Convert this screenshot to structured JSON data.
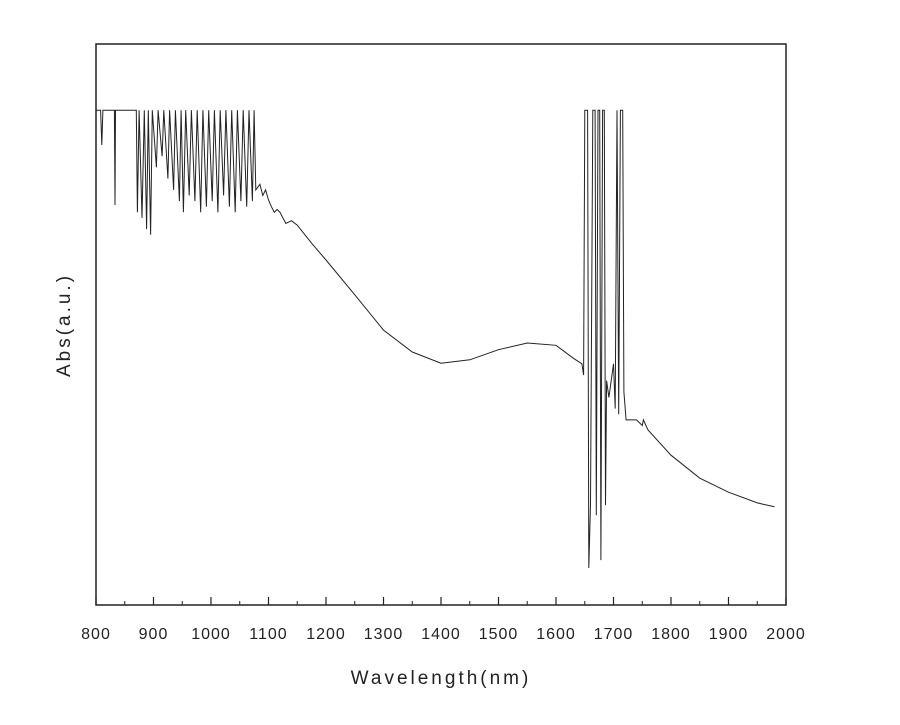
{
  "chart_data": {
    "type": "line",
    "title": "",
    "xlabel": "Wavelength(nm)",
    "ylabel": "Abs(a.u.)",
    "xlim": [
      800,
      2000
    ],
    "ylim": [
      0,
      1
    ],
    "xticks": [
      800,
      900,
      1000,
      1100,
      1200,
      1300,
      1400,
      1500,
      1600,
      1700,
      1800,
      1900,
      2000
    ],
    "grid": false,
    "legend": "none",
    "line_color": "#222222",
    "series": [
      {
        "name": "Abs",
        "points": [
          [
            800,
            0.882
          ],
          [
            808,
            0.882
          ],
          [
            810,
            0.82
          ],
          [
            812,
            0.882
          ],
          [
            832,
            0.882
          ],
          [
            833,
            0.713
          ],
          [
            834,
            0.882
          ],
          [
            870,
            0.882
          ],
          [
            872,
            0.7
          ],
          [
            875,
            0.882
          ],
          [
            880,
            0.69
          ],
          [
            884,
            0.882
          ],
          [
            888,
            0.67
          ],
          [
            891,
            0.882
          ],
          [
            895,
            0.66
          ],
          [
            898,
            0.882
          ],
          [
            905,
            0.78
          ],
          [
            908,
            0.882
          ],
          [
            915,
            0.8
          ],
          [
            918,
            0.882
          ],
          [
            925,
            0.76
          ],
          [
            928,
            0.882
          ],
          [
            935,
            0.74
          ],
          [
            938,
            0.882
          ],
          [
            945,
            0.72
          ],
          [
            948,
            0.882
          ],
          [
            952,
            0.7
          ],
          [
            956,
            0.882
          ],
          [
            962,
            0.73
          ],
          [
            966,
            0.882
          ],
          [
            972,
            0.72
          ],
          [
            976,
            0.882
          ],
          [
            982,
            0.7
          ],
          [
            986,
            0.882
          ],
          [
            992,
            0.71
          ],
          [
            996,
            0.882
          ],
          [
            1002,
            0.72
          ],
          [
            1006,
            0.882
          ],
          [
            1012,
            0.7
          ],
          [
            1016,
            0.882
          ],
          [
            1022,
            0.73
          ],
          [
            1026,
            0.882
          ],
          [
            1032,
            0.71
          ],
          [
            1036,
            0.882
          ],
          [
            1042,
            0.7
          ],
          [
            1046,
            0.882
          ],
          [
            1052,
            0.72
          ],
          [
            1056,
            0.882
          ],
          [
            1062,
            0.71
          ],
          [
            1066,
            0.882
          ],
          [
            1072,
            0.72
          ],
          [
            1075,
            0.882
          ],
          [
            1078,
            0.74
          ],
          [
            1085,
            0.75
          ],
          [
            1090,
            0.73
          ],
          [
            1095,
            0.74
          ],
          [
            1100,
            0.722
          ],
          [
            1105,
            0.71
          ],
          [
            1110,
            0.7
          ],
          [
            1115,
            0.705
          ],
          [
            1120,
            0.7
          ],
          [
            1130,
            0.68
          ],
          [
            1140,
            0.685
          ],
          [
            1150,
            0.677
          ],
          [
            1175,
            0.645
          ],
          [
            1200,
            0.615
          ],
          [
            1250,
            0.553
          ],
          [
            1300,
            0.49
          ],
          [
            1350,
            0.451
          ],
          [
            1400,
            0.431
          ],
          [
            1450,
            0.437
          ],
          [
            1500,
            0.455
          ],
          [
            1550,
            0.467
          ],
          [
            1600,
            0.463
          ],
          [
            1630,
            0.44
          ],
          [
            1645,
            0.43
          ],
          [
            1648,
            0.41
          ],
          [
            1650,
            0.882
          ],
          [
            1655,
            0.882
          ],
          [
            1657,
            0.066
          ],
          [
            1660,
            0.18
          ],
          [
            1664,
            0.882
          ],
          [
            1668,
            0.882
          ],
          [
            1670,
            0.16
          ],
          [
            1673,
            0.882
          ],
          [
            1676,
            0.882
          ],
          [
            1678,
            0.08
          ],
          [
            1681,
            0.882
          ],
          [
            1684,
            0.882
          ],
          [
            1686,
            0.178
          ],
          [
            1688,
            0.4
          ],
          [
            1692,
            0.37
          ],
          [
            1700,
            0.43
          ],
          [
            1703,
            0.35
          ],
          [
            1706,
            0.882
          ],
          [
            1709,
            0.34
          ],
          [
            1712,
            0.882
          ],
          [
            1716,
            0.882
          ],
          [
            1718,
            0.38
          ],
          [
            1722,
            0.33
          ],
          [
            1740,
            0.33
          ],
          [
            1750,
            0.32
          ],
          [
            1752,
            0.33
          ],
          [
            1760,
            0.312
          ],
          [
            1800,
            0.267
          ],
          [
            1850,
            0.226
          ],
          [
            1900,
            0.201
          ],
          [
            1950,
            0.182
          ],
          [
            1980,
            0.175
          ]
        ]
      }
    ]
  }
}
